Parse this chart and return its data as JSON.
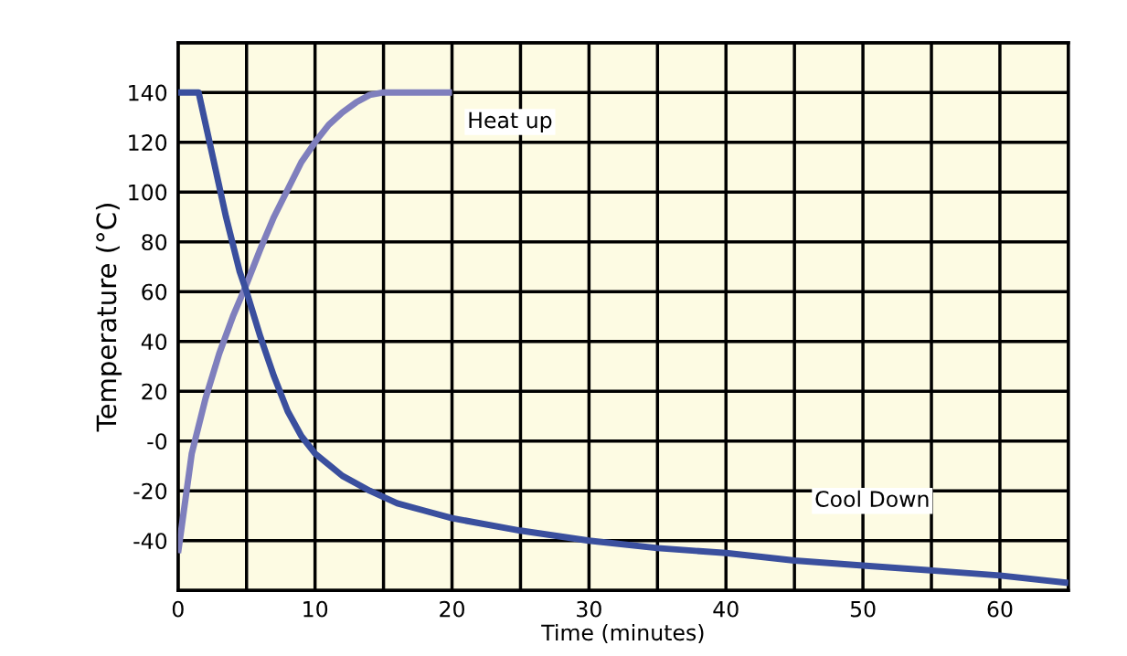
{
  "chart_data": {
    "type": "line",
    "xlabel": "Time (minutes)",
    "ylabel": "Temperature (°C)",
    "xlim": [
      0,
      65
    ],
    "ylim": [
      -60,
      160
    ],
    "xticks": [
      0,
      {
        "value": 5,
        "label": null
      },
      10,
      {
        "value": 15,
        "label": null
      },
      20,
      {
        "value": 25,
        "label": null
      },
      30,
      {
        "value": 35,
        "label": null
      },
      40,
      {
        "value": 45,
        "label": null
      },
      50,
      {
        "value": 55,
        "label": null
      },
      60,
      {
        "value": 65,
        "label": null
      }
    ],
    "yticks": [
      {
        "value": -60,
        "label": null
      },
      -40,
      -20,
      {
        "value": 0,
        "label": "-0"
      },
      20,
      40,
      60,
      80,
      100,
      120,
      140,
      {
        "value": 160,
        "label": null
      }
    ],
    "grid": true,
    "legend": false,
    "marker": "none",
    "line_style": "solid",
    "series": [
      {
        "name": "Heat up",
        "color": "#7f7fbd",
        "x": [
          0,
          0.5,
          1,
          2,
          3,
          4,
          5,
          6,
          7,
          8,
          9,
          10,
          11,
          12,
          13,
          14,
          15,
          20
        ],
        "values": [
          -45,
          -25,
          -5,
          17,
          35,
          50,
          63,
          77,
          90,
          101,
          112,
          120,
          127,
          132,
          136,
          139,
          140,
          140
        ]
      },
      {
        "name": "Cool Down",
        "color": "#3a4f9e",
        "x": [
          0,
          1.5,
          2.5,
          3.5,
          4.5,
          5,
          6,
          7,
          8,
          9,
          10,
          12,
          14,
          16,
          18,
          20,
          25,
          30,
          35,
          40,
          45,
          50,
          55,
          60,
          65
        ],
        "values": [
          140,
          140,
          115,
          90,
          68,
          60,
          42,
          26,
          12,
          2,
          -5,
          -14,
          -20,
          -25,
          -28,
          -31,
          -36,
          -40,
          -43,
          -45,
          -48,
          -50,
          -52,
          -54,
          -57
        ]
      }
    ]
  }
}
